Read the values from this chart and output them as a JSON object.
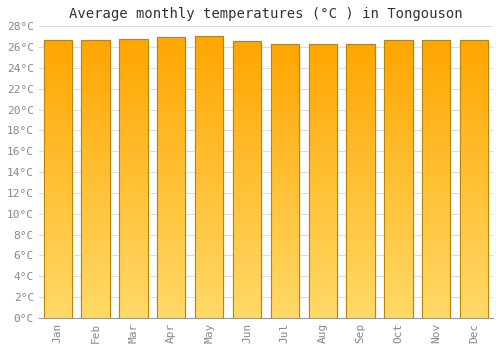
{
  "title": "Average monthly temperatures (°C ) in Tongouson",
  "months": [
    "Jan",
    "Feb",
    "Mar",
    "Apr",
    "May",
    "Jun",
    "Jul",
    "Aug",
    "Sep",
    "Oct",
    "Nov",
    "Dec"
  ],
  "values": [
    26.7,
    26.7,
    26.8,
    27.0,
    27.1,
    26.6,
    26.3,
    26.3,
    26.3,
    26.7,
    26.7,
    26.7
  ],
  "ylim": [
    0,
    28
  ],
  "yticks": [
    0,
    2,
    4,
    6,
    8,
    10,
    12,
    14,
    16,
    18,
    20,
    22,
    24,
    26,
    28
  ],
  "bar_color_top": "#FFA500",
  "bar_color_bottom": "#FFD966",
  "bar_edge_color": "#B8860B",
  "background_color": "#FFFFFF",
  "plot_bg_color": "#FFFFFF",
  "grid_color": "#DDDDDD",
  "title_fontsize": 10,
  "tick_fontsize": 8,
  "title_color": "#333333",
  "tick_color": "#888888",
  "bar_width": 0.75
}
